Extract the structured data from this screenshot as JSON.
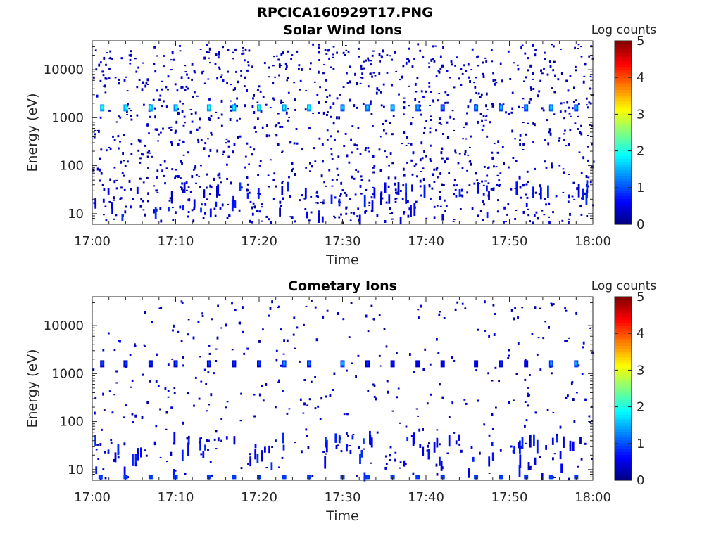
{
  "figure_title": "RPCICA160929T17.PNG",
  "chart_data": [
    {
      "type": "heatmap",
      "title": "Solar Wind Ions",
      "xlabel": "Time",
      "ylabel": "Energy (eV)",
      "x_ticks": [
        "17:00",
        "17:10",
        "17:20",
        "17:30",
        "17:40",
        "17:50",
        "18:00"
      ],
      "x_range": [
        "17:00",
        "18:00"
      ],
      "y_scale": "log",
      "y_ticks": [
        10,
        100,
        1000,
        10000
      ],
      "y_range": [
        6,
        40000
      ],
      "colorbar": {
        "label": "Log counts",
        "range": [
          0,
          5
        ],
        "ticks": [
          0,
          1,
          2,
          3,
          4,
          5
        ],
        "colormap": "jet"
      },
      "grid": false,
      "features": {
        "periodic_peak_energy_eV": 1600,
        "periodic_peak_times": [
          "17:01",
          "17:04",
          "17:07",
          "17:10",
          "17:14",
          "17:17",
          "17:20",
          "17:23",
          "17:26",
          "17:30",
          "17:33",
          "17:36",
          "17:39",
          "17:42",
          "17:46",
          "17:49",
          "17:52",
          "17:55",
          "17:58"
        ],
        "periodic_peak_log_counts": [
          2.0,
          2.0,
          2.0,
          1.9,
          2.0,
          2.0,
          2.0,
          1.9,
          1.9,
          1.6,
          1.7,
          1.7,
          1.6,
          1.3,
          1.5,
          1.6,
          1.5,
          1.7,
          1.5
        ],
        "background_log_counts": 0.1
      }
    },
    {
      "type": "heatmap",
      "title": "Cometary Ions",
      "xlabel": "Time",
      "ylabel": "Energy (eV)",
      "x_ticks": [
        "17:00",
        "17:10",
        "17:20",
        "17:30",
        "17:40",
        "17:50",
        "18:00"
      ],
      "x_range": [
        "17:00",
        "18:00"
      ],
      "y_scale": "log",
      "y_ticks": [
        10,
        100,
        1000,
        10000
      ],
      "y_range": [
        6,
        40000
      ],
      "colorbar": {
        "label": "Log counts",
        "range": [
          0,
          5
        ],
        "ticks": [
          0,
          1,
          2,
          3,
          4,
          5
        ],
        "colormap": "jet"
      },
      "grid": false,
      "features": {
        "periodic_peak_energy_eV": 1600,
        "periodic_peak_times": [
          "17:01",
          "17:04",
          "17:07",
          "17:10",
          "17:14",
          "17:17",
          "17:20",
          "17:23",
          "17:26",
          "17:30",
          "17:33",
          "17:36",
          "17:39",
          "17:42",
          "17:46",
          "17:49",
          "17:52",
          "17:55",
          "17:58"
        ],
        "periodic_peak_log_counts": [
          0.9,
          0.9,
          0.8,
          0.9,
          0.9,
          0.8,
          0.9,
          1.4,
          1.2,
          1.5,
          0.8,
          0.7,
          0.6,
          0.5,
          0.6,
          0.8,
          0.6,
          1.4,
          1.5
        ],
        "low_energy_band_eV": 7,
        "background_log_counts": 0.1
      }
    }
  ]
}
